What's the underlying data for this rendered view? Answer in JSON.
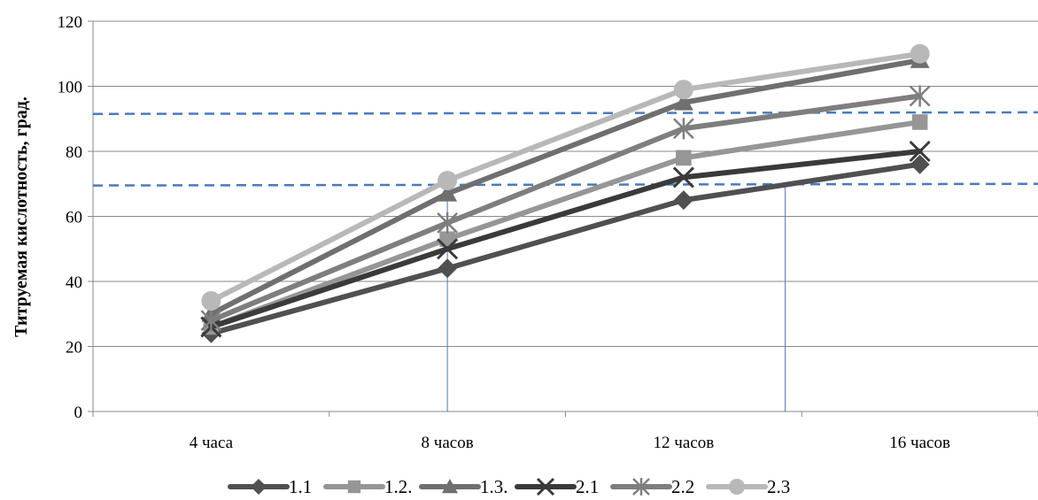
{
  "chart_data": {
    "type": "line",
    "title": "",
    "xlabel": "",
    "ylabel": "Титруемая кислотность, град.",
    "categories": [
      "4 часа",
      "8 часов",
      "12 часов",
      "16 часов"
    ],
    "ylim": [
      0,
      120
    ],
    "yticks": [
      0,
      20,
      40,
      60,
      80,
      100,
      120
    ],
    "grid": true,
    "legend_position": "bottom",
    "series": [
      {
        "name": "1.1",
        "values": [
          24,
          44,
          65,
          76
        ],
        "color": "#505050",
        "marker": "diamond"
      },
      {
        "name": "1.2.",
        "values": [
          26,
          53,
          78,
          89
        ],
        "color": "#969696",
        "marker": "square"
      },
      {
        "name": "1.3.",
        "values": [
          30,
          67,
          95,
          108
        ],
        "color": "#6f6f6f",
        "marker": "triangle"
      },
      {
        "name": "2.1",
        "values": [
          26,
          50,
          72,
          80
        ],
        "color": "#3a3a3a",
        "marker": "x"
      },
      {
        "name": "2.2",
        "values": [
          28,
          58,
          87,
          97
        ],
        "color": "#7e7e7e",
        "marker": "star"
      },
      {
        "name": "2.3",
        "values": [
          34,
          71,
          99,
          110
        ],
        "color": "#b8b8b8",
        "marker": "circle"
      }
    ],
    "reference_lines": [
      {
        "style": "dashed",
        "color": "#4a7abf",
        "y_start": 91.5,
        "y_end": 92
      },
      {
        "style": "dashed",
        "color": "#4a7abf",
        "y_start": 69.5,
        "y_end": 70
      }
    ],
    "vertical_markers": [
      {
        "x_category_index": 1,
        "y_top": 71,
        "color": "#4a7abf"
      },
      {
        "x_category_index": 2.43,
        "y_top": 70,
        "color": "#4a7abf"
      }
    ]
  }
}
